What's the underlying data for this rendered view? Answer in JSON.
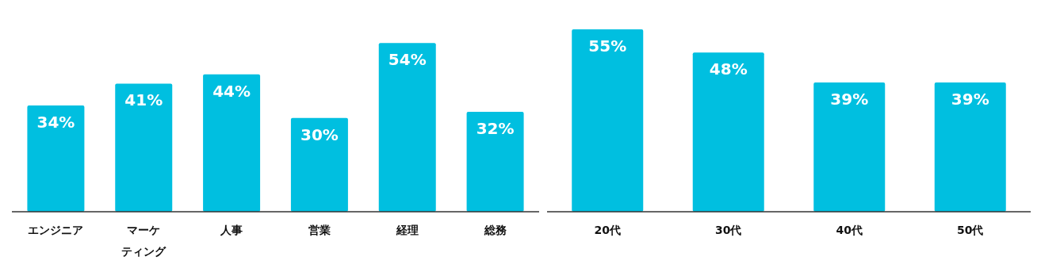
{
  "chart_data": [
    {
      "type": "bar",
      "categories": [
        "エンジニア",
        "マーケティング",
        "人事",
        "営業",
        "経理",
        "総務"
      ],
      "values": [
        34,
        41,
        44,
        30,
        54,
        32
      ],
      "value_labels": [
        "34%",
        "41%",
        "44%",
        "30%",
        "54%",
        "32%"
      ],
      "color": "#00bfe0"
    },
    {
      "type": "bar",
      "categories": [
        "20代",
        "30代",
        "40代",
        "50代"
      ],
      "values": [
        55,
        48,
        39,
        39
      ],
      "value_labels": [
        "55%",
        "48%",
        "39%",
        "39%"
      ],
      "color": "#00bfe0"
    }
  ]
}
